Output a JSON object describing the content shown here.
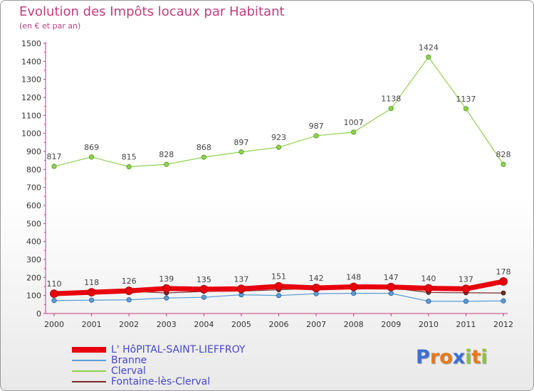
{
  "header": {
    "title": "Evolution des Impôts locaux par Habitant",
    "subtitle": "(en € et par an)"
  },
  "logo": {
    "text": "Proxiti",
    "colors": [
      "#3a6fd8",
      "#e67a1e",
      "#e67a1e",
      "#3a6fd8",
      "#8fc23b",
      "#e67a1e",
      "#8fc23b"
    ]
  },
  "chart_data": {
    "type": "line",
    "title": "Evolution des Impôts locaux par Habitant",
    "subtitle": "(en € et par an)",
    "xlabel": "",
    "ylabel": "",
    "categories": [
      "2000",
      "2001",
      "2002",
      "2003",
      "2004",
      "2005",
      "2006",
      "2007",
      "2008",
      "2009",
      "2010",
      "2011",
      "2012"
    ],
    "ylim": [
      0,
      1500
    ],
    "yticks": [
      0,
      100,
      200,
      300,
      400,
      500,
      600,
      700,
      800,
      900,
      1000,
      1100,
      1200,
      1300,
      1400,
      1500
    ],
    "ytick_labels": [
      "0",
      "100",
      "200",
      "300",
      "400",
      "500",
      "600",
      "700",
      "800",
      "900",
      "1000",
      "1100",
      "1200",
      "1300",
      "1400",
      "1500"
    ],
    "grid": false,
    "legend_position": "bottom-left",
    "series": [
      {
        "name": "L' HôPITAL-SAINT-LIEFFROY",
        "color": "#e8000c",
        "values": [
          110,
          118,
          126,
          139,
          135,
          137,
          151,
          142,
          148,
          147,
          140,
          137,
          178
        ],
        "labels": true
      },
      {
        "name": "Branne",
        "color": "#5b9bd5",
        "values": [
          72,
          74,
          76,
          86,
          90,
          104,
          100,
          110,
          112,
          112,
          68,
          68,
          70
        ],
        "labels": false
      },
      {
        "name": "Clerval",
        "color": "#90d050",
        "values": [
          817,
          869,
          815,
          828,
          868,
          897,
          923,
          987,
          1007,
          1138,
          1424,
          1137,
          828
        ],
        "labels": true
      },
      {
        "name": "Fontaine-lès-Clerval",
        "color": "#7a2a2a",
        "values": [
          112,
          114,
          124,
          114,
          123,
          124,
          132,
          140,
          142,
          142,
          117,
          115,
          114
        ],
        "labels": false
      }
    ]
  }
}
